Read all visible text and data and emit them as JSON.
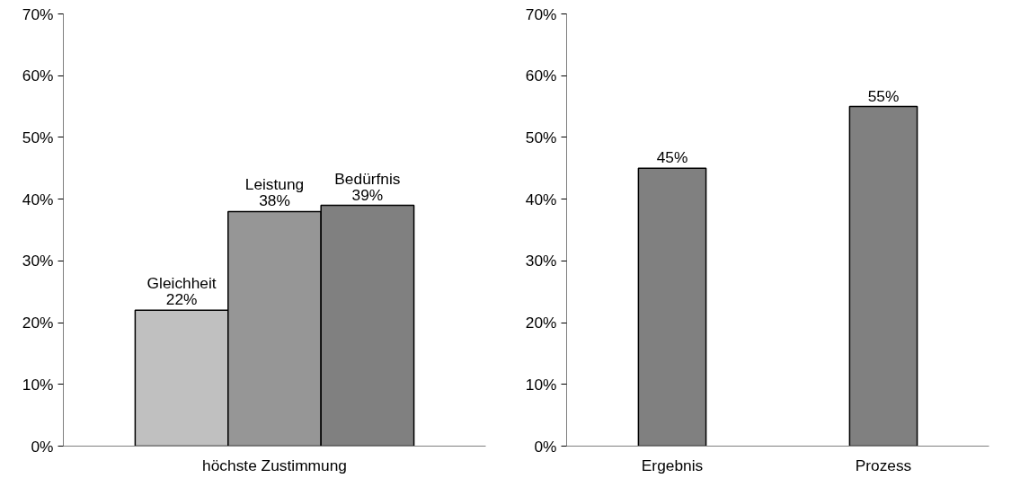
{
  "chart_data": [
    {
      "type": "bar",
      "categories": [
        "höchste Zustimmung"
      ],
      "ylim": [
        0,
        70
      ],
      "yticks": [
        {
          "value": 0,
          "label": "0%"
        },
        {
          "value": 10,
          "label": "10%"
        },
        {
          "value": 20,
          "label": "20%"
        },
        {
          "value": 30,
          "label": "30%"
        },
        {
          "value": 40,
          "label": "40%"
        },
        {
          "value": 50,
          "label": "50%"
        },
        {
          "value": 60,
          "label": "60%"
        },
        {
          "value": 70,
          "label": "70%"
        }
      ],
      "series": [
        {
          "name": "Gleichheit",
          "color": "#c0c0c0",
          "values": [
            22
          ],
          "value_labels": [
            "22%"
          ]
        },
        {
          "name": "Leistung",
          "color": "#969696",
          "values": [
            38
          ],
          "value_labels": [
            "38%"
          ]
        },
        {
          "name": "Bedürfnis",
          "color": "#808080",
          "values": [
            39
          ],
          "value_labels": [
            "39%"
          ]
        }
      ]
    },
    {
      "type": "bar",
      "categories": [
        "Ergebnis",
        "Prozess"
      ],
      "ylim": [
        0,
        70
      ],
      "yticks": [
        {
          "value": 0,
          "label": "0%"
        },
        {
          "value": 10,
          "label": "10%"
        },
        {
          "value": 20,
          "label": "20%"
        },
        {
          "value": 30,
          "label": "30%"
        },
        {
          "value": 40,
          "label": "40%"
        },
        {
          "value": 50,
          "label": "50%"
        },
        {
          "value": 60,
          "label": "60%"
        },
        {
          "value": 70,
          "label": "70%"
        }
      ],
      "series": [
        {
          "color": "#808080",
          "values": [
            45,
            55
          ],
          "value_labels": [
            "45%",
            "55%"
          ]
        }
      ]
    }
  ]
}
